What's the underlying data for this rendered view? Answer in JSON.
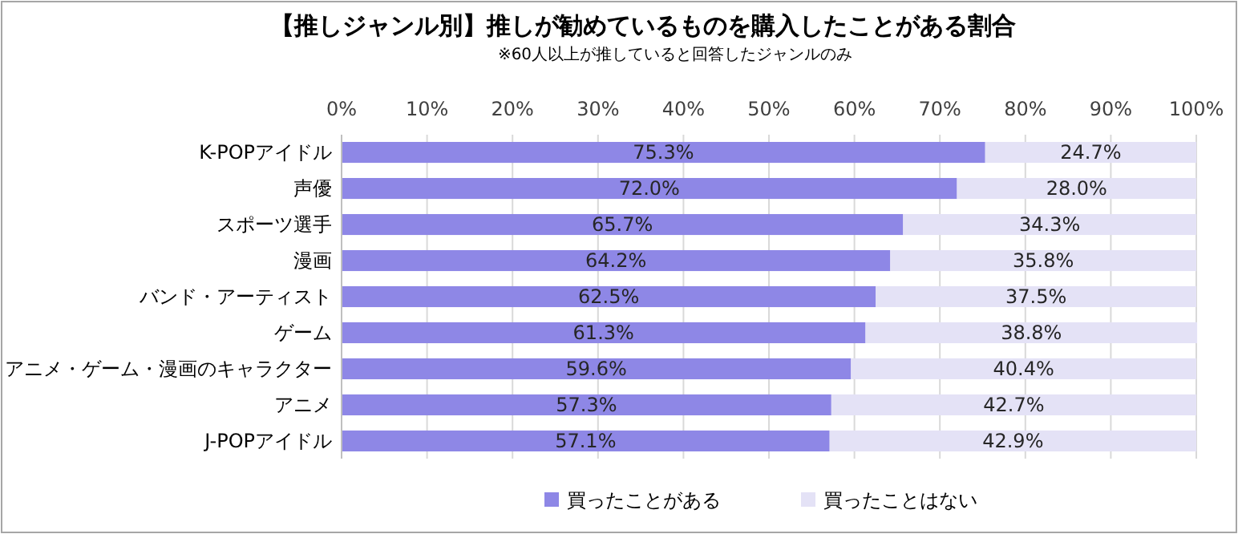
{
  "chart_data": {
    "type": "bar",
    "orientation": "horizontal",
    "stacked": true,
    "title": "【推しジャンル別】推しが勧めているものを購入したことがある割合",
    "subtitle": "※60人以上が推していると回答したジャンルのみ",
    "categories": [
      "K-POPアイドル",
      "声優",
      "スポーツ選手",
      "漫画",
      "バンド・アーティスト",
      "ゲーム",
      "アニメ・ゲーム・漫画のキャラクター",
      "アニメ",
      "J-POPアイドル"
    ],
    "series": [
      {
        "name": "買ったことがある",
        "color": "#8e87e6",
        "values": [
          75.3,
          72.0,
          65.7,
          64.2,
          62.5,
          61.3,
          59.6,
          57.3,
          57.1
        ],
        "value_labels": [
          "75.3%",
          "72.0%",
          "65.7%",
          "64.2%",
          "62.5%",
          "61.3%",
          "59.6%",
          "57.3%",
          "57.1%"
        ]
      },
      {
        "name": "買ったことはない",
        "color": "#e4e2f6",
        "values": [
          24.7,
          28.0,
          34.3,
          35.8,
          37.5,
          38.8,
          40.4,
          42.7,
          42.9
        ],
        "value_labels": [
          "24.7%",
          "28.0%",
          "34.3%",
          "35.8%",
          "37.5%",
          "38.8%",
          "40.4%",
          "42.7%",
          "42.9%"
        ]
      }
    ],
    "xlim": [
      0,
      100
    ],
    "xticks": [
      {
        "value": 0,
        "label": "0%"
      },
      {
        "value": 10,
        "label": "10%"
      },
      {
        "value": 20,
        "label": "20%"
      },
      {
        "value": 30,
        "label": "30%"
      },
      {
        "value": 40,
        "label": "40%"
      },
      {
        "value": 50,
        "label": "50%"
      },
      {
        "value": 60,
        "label": "60%"
      },
      {
        "value": 70,
        "label": "70%"
      },
      {
        "value": 80,
        "label": "80%"
      },
      {
        "value": 90,
        "label": "90%"
      },
      {
        "value": 100,
        "label": "100%"
      }
    ],
    "grid": "x",
    "legend": "bottom"
  }
}
